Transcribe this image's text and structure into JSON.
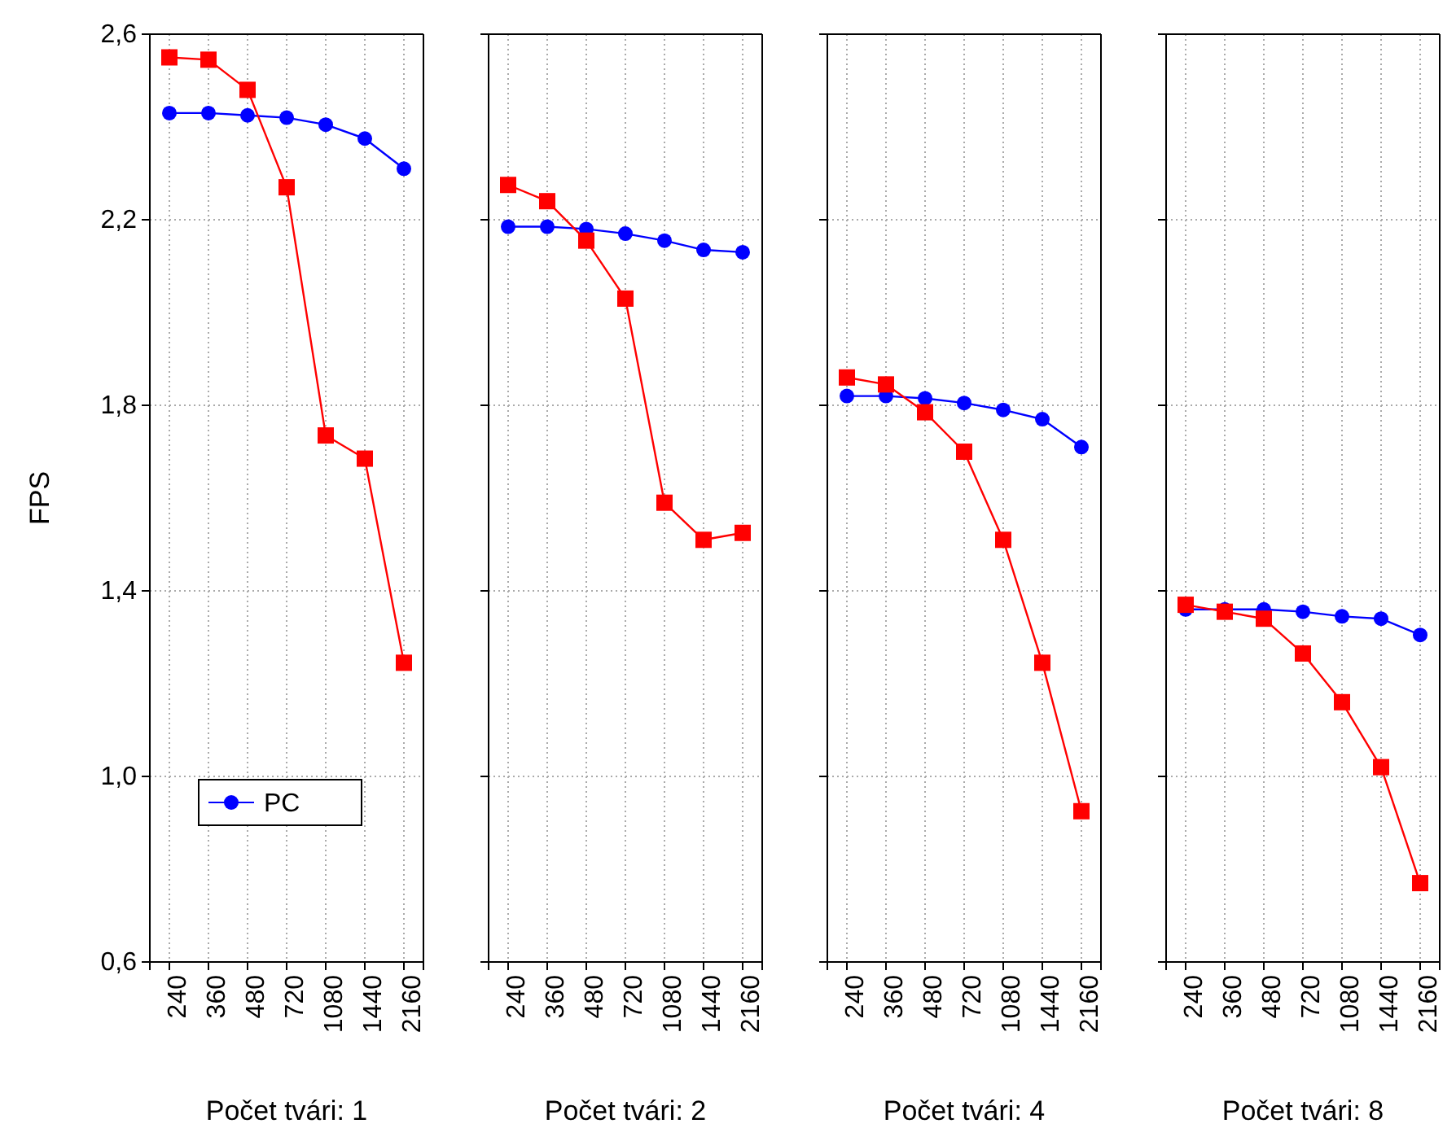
{
  "chart_data": [
    {
      "type": "line",
      "xlabel": "Počet tvári: 1",
      "ylabel": "FPS",
      "categories": [
        "240",
        "360",
        "480",
        "720",
        "1080",
        "1440",
        "2160"
      ],
      "ylim": [
        0.6,
        2.6
      ],
      "yticks": [
        {
          "value": 0.6,
          "label": "0,6"
        },
        {
          "value": 1.0,
          "label": "1,0"
        },
        {
          "value": 1.4,
          "label": "1,4"
        },
        {
          "value": 1.8,
          "label": "1,8"
        },
        {
          "value": 2.2,
          "label": "2,2"
        },
        {
          "value": 2.6,
          "label": "2,6"
        }
      ],
      "grid": true,
      "legend": "bottom left",
      "series": [
        {
          "name": "PC",
          "color": "#0000ff",
          "marker": "circle",
          "values": [
            2.43,
            2.43,
            2.425,
            2.42,
            2.405,
            2.375,
            2.31
          ]
        },
        {
          "color": "#ff0000",
          "marker": "square",
          "values": [
            2.55,
            2.545,
            2.48,
            2.27,
            1.735,
            1.685,
            1.245
          ]
        }
      ]
    },
    {
      "type": "line",
      "xlabel": "Počet tvári: 2",
      "categories": [
        "240",
        "360",
        "480",
        "720",
        "1080",
        "1440",
        "2160"
      ],
      "ylim": [
        0.6,
        2.6
      ],
      "yticks": [
        {
          "value": 0.6,
          "label": null
        },
        {
          "value": 1.0,
          "label": null
        },
        {
          "value": 1.4,
          "label": null
        },
        {
          "value": 1.8,
          "label": null
        },
        {
          "value": 2.2,
          "label": null
        },
        {
          "value": 2.6,
          "label": null
        }
      ],
      "grid": true,
      "tick_labels": "x",
      "series": [
        {
          "color": "#0000ff",
          "marker": "circle",
          "values": [
            2.185,
            2.185,
            2.18,
            2.17,
            2.155,
            2.135,
            2.13
          ]
        },
        {
          "color": "#ff0000",
          "marker": "square",
          "values": [
            2.275,
            2.24,
            2.155,
            2.03,
            1.59,
            1.51,
            1.525
          ]
        }
      ]
    },
    {
      "type": "line",
      "xlabel": "Počet tvári: 4",
      "categories": [
        "240",
        "360",
        "480",
        "720",
        "1080",
        "1440",
        "2160"
      ],
      "ylim": [
        0.6,
        2.6
      ],
      "yticks": [
        {
          "value": 0.6,
          "label": null
        },
        {
          "value": 1.0,
          "label": null
        },
        {
          "value": 1.4,
          "label": null
        },
        {
          "value": 1.8,
          "label": null
        },
        {
          "value": 2.2,
          "label": null
        },
        {
          "value": 2.6,
          "label": null
        }
      ],
      "grid": true,
      "tick_labels": "x",
      "series": [
        {
          "color": "#0000ff",
          "marker": "circle",
          "values": [
            1.82,
            1.82,
            1.815,
            1.805,
            1.79,
            1.77,
            1.71
          ]
        },
        {
          "color": "#ff0000",
          "marker": "square",
          "values": [
            1.86,
            1.845,
            1.785,
            1.7,
            1.51,
            1.245,
            0.925
          ]
        }
      ]
    },
    {
      "type": "line",
      "xlabel": "Počet tvári: 8",
      "categories": [
        "240",
        "360",
        "480",
        "720",
        "1080",
        "1440",
        "2160"
      ],
      "ylim": [
        0.6,
        2.6
      ],
      "yticks": [
        {
          "value": 0.6,
          "label": null
        },
        {
          "value": 1.0,
          "label": null
        },
        {
          "value": 1.4,
          "label": null
        },
        {
          "value": 1.8,
          "label": null
        },
        {
          "value": 2.2,
          "label": null
        },
        {
          "value": 2.6,
          "label": null
        }
      ],
      "grid": true,
      "tick_labels": "x",
      "series": [
        {
          "color": "#0000ff",
          "marker": "circle",
          "values": [
            1.36,
            1.36,
            1.36,
            1.355,
            1.345,
            1.34,
            1.305
          ]
        },
        {
          "color": "#ff0000",
          "marker": "square",
          "values": [
            1.37,
            1.355,
            1.34,
            1.265,
            1.16,
            1.02,
            0.77
          ]
        }
      ]
    }
  ]
}
